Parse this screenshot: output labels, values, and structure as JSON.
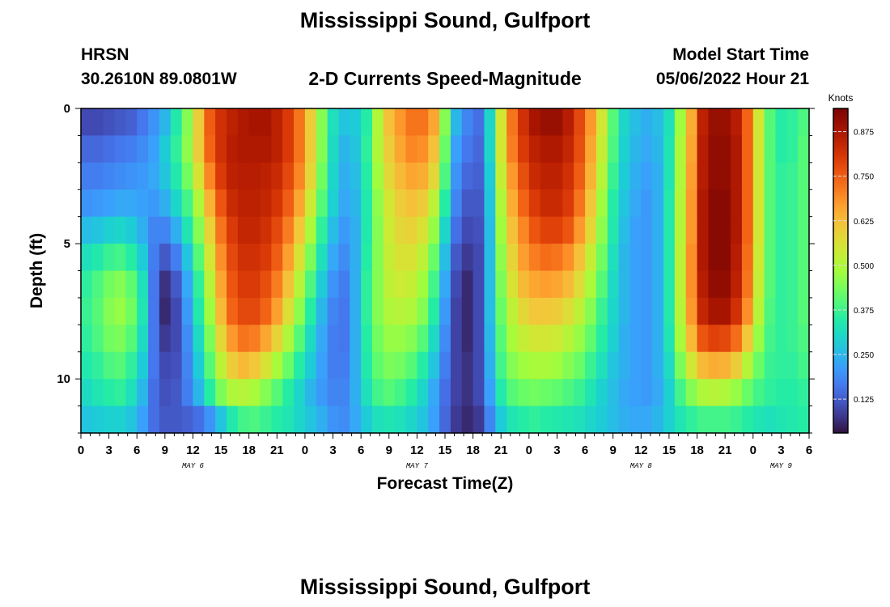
{
  "header": {
    "title": "Mississippi Sound, Gulfport",
    "station_id": "HRSN",
    "station_coords": "30.2610N  89.0801W",
    "subtitle": "2-D Currents Speed-Magnitude",
    "model_start_label": "Model Start Time",
    "model_start_value": "05/06/2022 Hour 21"
  },
  "footer": {
    "next_title": "Mississippi Sound, Gulfport"
  },
  "chart_data": {
    "type": "heatmap",
    "title": "2-D Currents Speed-Magnitude",
    "xlabel": "Forecast Time(Z)",
    "ylabel": "Depth (ft)",
    "ylim": [
      0,
      12
    ],
    "y_ticks": [
      "0",
      "5",
      "10"
    ],
    "x_ticks": [
      "0",
      "3",
      "6",
      "9",
      "12",
      "15",
      "18",
      "21",
      "0",
      "3",
      "6",
      "9",
      "12",
      "15",
      "18",
      "21",
      "0",
      "3",
      "6",
      "9",
      "12",
      "15",
      "18",
      "21",
      "0",
      "3",
      "6"
    ],
    "date_labels": [
      {
        "label": "MAY 6",
        "hour": 12
      },
      {
        "label": "MAY 7",
        "hour": 36
      },
      {
        "label": "MAY 8",
        "hour": 60
      },
      {
        "label": "MAY 9",
        "hour": 75
      }
    ],
    "xlim_hours": [
      0,
      78
    ],
    "colorbar": {
      "unit": "Knots",
      "range": [
        0.03,
        0.94
      ],
      "ticks": [
        "0.875",
        "0.750",
        "0.625",
        "0.500",
        "0.375",
        "0.250",
        "0.125"
      ],
      "colormap": "turbo"
    },
    "depth_levels": 12,
    "speed_knots": [
      [
        0.1,
        0.1,
        0.11,
        0.12,
        0.13,
        0.16,
        0.2,
        0.25,
        0.34,
        0.45,
        0.6,
        0.75,
        0.82,
        0.85,
        0.87,
        0.88,
        0.88,
        0.85,
        0.8,
        0.72,
        0.6,
        0.45,
        0.32,
        0.27,
        0.28,
        0.35,
        0.5,
        0.62,
        0.68,
        0.72,
        0.72,
        0.66,
        0.45,
        0.25,
        0.18,
        0.15,
        0.3,
        0.55,
        0.72,
        0.82,
        0.88,
        0.9,
        0.9,
        0.86,
        0.78,
        0.68,
        0.55,
        0.4,
        0.3,
        0.26,
        0.24,
        0.26,
        0.32,
        0.48,
        0.65,
        0.85,
        0.9,
        0.9,
        0.86,
        0.74,
        0.55,
        0.4,
        0.35,
        0.36,
        0.39
      ],
      [
        0.14,
        0.14,
        0.15,
        0.16,
        0.17,
        0.19,
        0.22,
        0.28,
        0.36,
        0.46,
        0.6,
        0.74,
        0.82,
        0.86,
        0.87,
        0.87,
        0.87,
        0.85,
        0.8,
        0.72,
        0.6,
        0.45,
        0.31,
        0.25,
        0.27,
        0.36,
        0.5,
        0.6,
        0.66,
        0.7,
        0.69,
        0.62,
        0.42,
        0.22,
        0.16,
        0.14,
        0.3,
        0.55,
        0.71,
        0.8,
        0.85,
        0.87,
        0.87,
        0.84,
        0.77,
        0.66,
        0.53,
        0.39,
        0.29,
        0.25,
        0.23,
        0.25,
        0.33,
        0.5,
        0.66,
        0.86,
        0.91,
        0.91,
        0.87,
        0.74,
        0.55,
        0.4,
        0.35,
        0.36,
        0.4
      ],
      [
        0.17,
        0.17,
        0.18,
        0.19,
        0.2,
        0.21,
        0.23,
        0.27,
        0.34,
        0.43,
        0.56,
        0.7,
        0.8,
        0.85,
        0.86,
        0.86,
        0.85,
        0.83,
        0.78,
        0.7,
        0.58,
        0.43,
        0.3,
        0.24,
        0.26,
        0.35,
        0.48,
        0.58,
        0.63,
        0.66,
        0.65,
        0.58,
        0.39,
        0.2,
        0.14,
        0.13,
        0.28,
        0.53,
        0.68,
        0.77,
        0.83,
        0.85,
        0.85,
        0.82,
        0.75,
        0.64,
        0.51,
        0.37,
        0.28,
        0.24,
        0.22,
        0.24,
        0.33,
        0.5,
        0.67,
        0.86,
        0.91,
        0.91,
        0.87,
        0.74,
        0.55,
        0.4,
        0.36,
        0.37,
        0.4
      ],
      [
        0.2,
        0.21,
        0.22,
        0.23,
        0.23,
        0.22,
        0.21,
        0.24,
        0.3,
        0.38,
        0.5,
        0.64,
        0.76,
        0.83,
        0.85,
        0.85,
        0.84,
        0.81,
        0.75,
        0.66,
        0.54,
        0.4,
        0.29,
        0.23,
        0.25,
        0.34,
        0.46,
        0.55,
        0.6,
        0.62,
        0.6,
        0.52,
        0.35,
        0.18,
        0.12,
        0.12,
        0.27,
        0.5,
        0.65,
        0.74,
        0.8,
        0.83,
        0.83,
        0.8,
        0.72,
        0.61,
        0.48,
        0.35,
        0.27,
        0.23,
        0.21,
        0.24,
        0.34,
        0.51,
        0.68,
        0.87,
        0.92,
        0.92,
        0.87,
        0.74,
        0.55,
        0.4,
        0.36,
        0.37,
        0.4
      ],
      [
        0.26,
        0.27,
        0.29,
        0.3,
        0.28,
        0.24,
        0.18,
        0.18,
        0.24,
        0.33,
        0.45,
        0.59,
        0.72,
        0.8,
        0.84,
        0.84,
        0.82,
        0.78,
        0.71,
        0.61,
        0.49,
        0.36,
        0.26,
        0.21,
        0.24,
        0.34,
        0.45,
        0.54,
        0.58,
        0.59,
        0.56,
        0.47,
        0.3,
        0.15,
        0.1,
        0.11,
        0.26,
        0.48,
        0.62,
        0.7,
        0.76,
        0.79,
        0.79,
        0.76,
        0.68,
        0.58,
        0.46,
        0.34,
        0.26,
        0.22,
        0.21,
        0.24,
        0.34,
        0.51,
        0.68,
        0.87,
        0.92,
        0.92,
        0.87,
        0.74,
        0.55,
        0.4,
        0.36,
        0.37,
        0.4
      ],
      [
        0.32,
        0.34,
        0.37,
        0.38,
        0.35,
        0.28,
        0.17,
        0.12,
        0.17,
        0.27,
        0.4,
        0.55,
        0.69,
        0.78,
        0.82,
        0.82,
        0.8,
        0.75,
        0.67,
        0.56,
        0.44,
        0.32,
        0.23,
        0.19,
        0.24,
        0.35,
        0.45,
        0.53,
        0.56,
        0.56,
        0.52,
        0.42,
        0.26,
        0.12,
        0.08,
        0.1,
        0.26,
        0.46,
        0.59,
        0.67,
        0.71,
        0.73,
        0.72,
        0.69,
        0.62,
        0.53,
        0.43,
        0.32,
        0.25,
        0.22,
        0.21,
        0.24,
        0.34,
        0.52,
        0.69,
        0.87,
        0.92,
        0.92,
        0.86,
        0.73,
        0.54,
        0.4,
        0.36,
        0.37,
        0.4
      ],
      [
        0.36,
        0.39,
        0.43,
        0.45,
        0.41,
        0.32,
        0.16,
        0.07,
        0.12,
        0.23,
        0.36,
        0.51,
        0.66,
        0.76,
        0.8,
        0.8,
        0.77,
        0.71,
        0.62,
        0.51,
        0.39,
        0.28,
        0.2,
        0.17,
        0.24,
        0.36,
        0.45,
        0.52,
        0.54,
        0.53,
        0.48,
        0.38,
        0.23,
        0.1,
        0.06,
        0.1,
        0.26,
        0.44,
        0.56,
        0.63,
        0.66,
        0.67,
        0.66,
        0.63,
        0.57,
        0.49,
        0.4,
        0.31,
        0.25,
        0.22,
        0.21,
        0.24,
        0.34,
        0.52,
        0.69,
        0.86,
        0.91,
        0.91,
        0.85,
        0.72,
        0.53,
        0.4,
        0.36,
        0.37,
        0.4
      ],
      [
        0.37,
        0.4,
        0.45,
        0.47,
        0.43,
        0.33,
        0.16,
        0.06,
        0.1,
        0.21,
        0.34,
        0.48,
        0.63,
        0.74,
        0.78,
        0.78,
        0.74,
        0.67,
        0.57,
        0.46,
        0.35,
        0.25,
        0.18,
        0.16,
        0.24,
        0.36,
        0.45,
        0.5,
        0.51,
        0.5,
        0.45,
        0.35,
        0.21,
        0.09,
        0.06,
        0.1,
        0.26,
        0.42,
        0.52,
        0.58,
        0.61,
        0.61,
        0.6,
        0.57,
        0.52,
        0.45,
        0.37,
        0.3,
        0.25,
        0.22,
        0.21,
        0.24,
        0.34,
        0.51,
        0.68,
        0.84,
        0.88,
        0.88,
        0.82,
        0.69,
        0.51,
        0.39,
        0.36,
        0.37,
        0.4
      ],
      [
        0.36,
        0.39,
        0.43,
        0.44,
        0.4,
        0.31,
        0.16,
        0.08,
        0.1,
        0.19,
        0.31,
        0.44,
        0.58,
        0.68,
        0.72,
        0.71,
        0.66,
        0.59,
        0.5,
        0.4,
        0.31,
        0.23,
        0.17,
        0.16,
        0.24,
        0.35,
        0.43,
        0.47,
        0.47,
        0.45,
        0.4,
        0.31,
        0.19,
        0.09,
        0.06,
        0.1,
        0.25,
        0.4,
        0.49,
        0.53,
        0.55,
        0.55,
        0.54,
        0.51,
        0.47,
        0.41,
        0.35,
        0.29,
        0.24,
        0.22,
        0.21,
        0.24,
        0.33,
        0.49,
        0.63,
        0.76,
        0.79,
        0.78,
        0.73,
        0.61,
        0.47,
        0.38,
        0.36,
        0.37,
        0.39
      ],
      [
        0.34,
        0.36,
        0.39,
        0.4,
        0.36,
        0.28,
        0.16,
        0.1,
        0.11,
        0.18,
        0.28,
        0.4,
        0.52,
        0.6,
        0.63,
        0.61,
        0.56,
        0.49,
        0.42,
        0.35,
        0.28,
        0.22,
        0.17,
        0.17,
        0.24,
        0.34,
        0.41,
        0.44,
        0.43,
        0.4,
        0.35,
        0.27,
        0.17,
        0.09,
        0.07,
        0.1,
        0.24,
        0.38,
        0.45,
        0.48,
        0.49,
        0.49,
        0.48,
        0.45,
        0.42,
        0.37,
        0.32,
        0.27,
        0.24,
        0.22,
        0.21,
        0.24,
        0.31,
        0.44,
        0.55,
        0.63,
        0.65,
        0.64,
        0.6,
        0.51,
        0.42,
        0.37,
        0.36,
        0.36,
        0.38
      ],
      [
        0.31,
        0.33,
        0.35,
        0.36,
        0.32,
        0.25,
        0.15,
        0.11,
        0.12,
        0.17,
        0.25,
        0.35,
        0.44,
        0.5,
        0.51,
        0.49,
        0.45,
        0.4,
        0.35,
        0.3,
        0.25,
        0.21,
        0.18,
        0.18,
        0.24,
        0.32,
        0.38,
        0.4,
        0.38,
        0.35,
        0.3,
        0.23,
        0.15,
        0.09,
        0.07,
        0.1,
        0.22,
        0.34,
        0.4,
        0.42,
        0.43,
        0.42,
        0.41,
        0.39,
        0.37,
        0.33,
        0.29,
        0.26,
        0.23,
        0.22,
        0.21,
        0.23,
        0.29,
        0.38,
        0.45,
        0.5,
        0.51,
        0.5,
        0.47,
        0.42,
        0.38,
        0.36,
        0.35,
        0.35,
        0.36
      ],
      [
        0.27,
        0.28,
        0.29,
        0.29,
        0.27,
        0.22,
        0.15,
        0.12,
        0.12,
        0.13,
        0.15,
        0.2,
        0.27,
        0.34,
        0.38,
        0.39,
        0.37,
        0.35,
        0.33,
        0.3,
        0.27,
        0.24,
        0.2,
        0.19,
        0.23,
        0.28,
        0.32,
        0.33,
        0.32,
        0.3,
        0.27,
        0.22,
        0.14,
        0.08,
        0.06,
        0.08,
        0.18,
        0.28,
        0.33,
        0.35,
        0.36,
        0.35,
        0.34,
        0.33,
        0.32,
        0.3,
        0.28,
        0.26,
        0.24,
        0.23,
        0.23,
        0.25,
        0.29,
        0.33,
        0.36,
        0.38,
        0.38,
        0.38,
        0.37,
        0.35,
        0.33,
        0.32,
        0.33,
        0.34,
        0.35
      ]
    ]
  }
}
